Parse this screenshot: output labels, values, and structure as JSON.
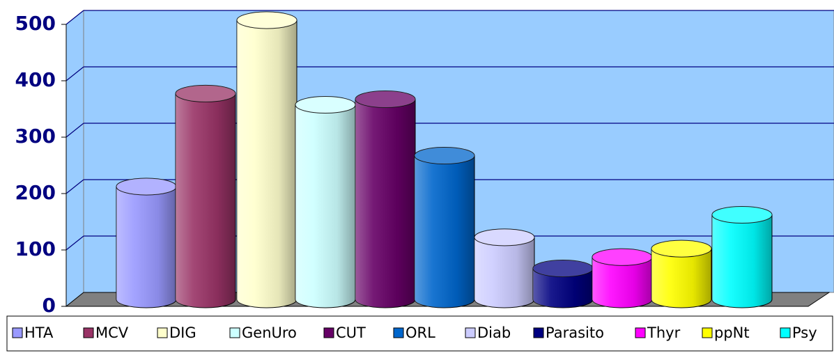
{
  "chart_data": {
    "type": "bar",
    "series": [
      {
        "name": "HTA",
        "color": "#9999ff",
        "values": [
          200
        ]
      },
      {
        "name": "MCV",
        "color": "#993366",
        "values": [
          365
        ]
      },
      {
        "name": "DIG",
        "color": "#ffffcc",
        "values": [
          495
        ]
      },
      {
        "name": "GenUro",
        "color": "#ccffff",
        "values": [
          345
        ]
      },
      {
        "name": "CUT",
        "color": "#660066",
        "values": [
          355
        ]
      },
      {
        "name": "ORL",
        "color": "#0066cc",
        "values": [
          255
        ]
      },
      {
        "name": "Diab",
        "color": "#ccccff",
        "values": [
          110
        ]
      },
      {
        "name": "Parasito",
        "color": "#000080",
        "values": [
          55
        ]
      },
      {
        "name": "Thyr",
        "color": "#ff00ff",
        "values": [
          75
        ]
      },
      {
        "name": "ppNt",
        "color": "#ffff00",
        "values": [
          90
        ]
      },
      {
        "name": "Psy",
        "color": "#00ffff",
        "values": [
          150
        ]
      }
    ],
    "ylim": [
      0,
      500
    ],
    "yticks": [
      0,
      100,
      200,
      300,
      400,
      500
    ],
    "grid": true,
    "legend": "bottom"
  }
}
